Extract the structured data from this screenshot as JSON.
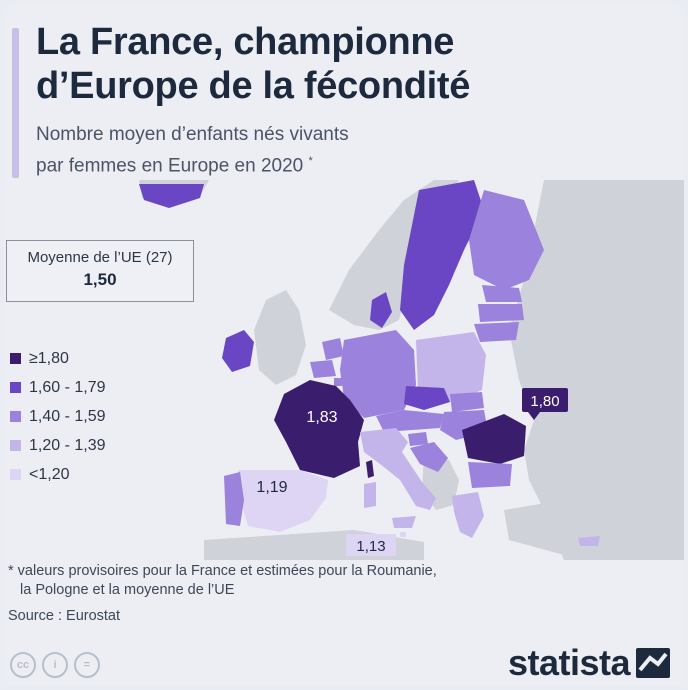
{
  "header": {
    "title_line1": "La France, championne",
    "title_line2": "d’Europe de la fécondité",
    "subtitle_line1": "Nombre moyen d’enfants nés vivants",
    "subtitle_line2": "par femmes en Europe en 2020",
    "subtitle_mark": "*"
  },
  "average_box": {
    "label": "Moyenne de l’UE (27)",
    "value": "1,50"
  },
  "legend": [
    {
      "label": "≥1,80",
      "color": "#3b1d6e"
    },
    {
      "label": "1,60 - 1,79",
      "color": "#6a46c4"
    },
    {
      "label": "1,40 - 1,59",
      "color": "#9b82dc"
    },
    {
      "label": "1,20 - 1,39",
      "color": "#c3b5ea"
    },
    {
      "label": "<1,20",
      "color": "#ddd5f3"
    }
  ],
  "map_labels": {
    "france": "1,83",
    "romania": "1,80",
    "spain": "1,19",
    "malta": "1,13"
  },
  "notes": {
    "line1": "* valeurs provisoires pour la France et estimées pour la Roumanie,",
    "line2": "la Pologne et la moyenne de l’UE",
    "source": "Source : Eurostat"
  },
  "license_icons": [
    "cc",
    "i",
    "="
  ],
  "brand": "statista",
  "colors": {
    "title": "#1d2a3e",
    "non_eu": "#cfd2d8",
    "sea": "#eceef4"
  }
}
